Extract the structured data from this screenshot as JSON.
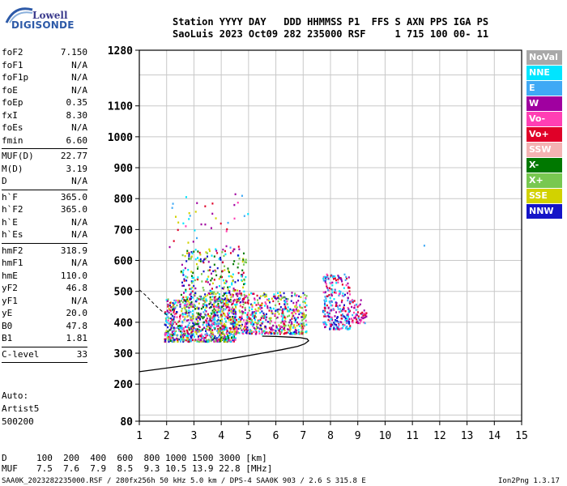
{
  "logo": {
    "line1": "Lowell",
    "line2": "DIGISONDE"
  },
  "header": {
    "row1": "Station YYYY DAY   DDD HHMMSS P1  FFS S AXN PPS IGA PS",
    "row2": "SaoLuis 2023 Oct09 282 235000 RSF     1 715 100 00- 11"
  },
  "params_groups": [
    [
      {
        "name": "foF2",
        "value": "7.150"
      },
      {
        "name": "foF1",
        "value": "N/A"
      },
      {
        "name": "foF1p",
        "value": "N/A"
      },
      {
        "name": "foE",
        "value": "N/A"
      },
      {
        "name": "foEp",
        "value": "0.35"
      },
      {
        "name": "fxI",
        "value": "8.30"
      },
      {
        "name": "foEs",
        "value": "N/A"
      },
      {
        "name": "fmin",
        "value": "6.60"
      }
    ],
    [
      {
        "name": "MUF(D)",
        "value": "22.77"
      },
      {
        "name": "M(D)",
        "value": "3.19"
      },
      {
        "name": "D",
        "value": "N/A"
      }
    ],
    [
      {
        "name": "h`F",
        "value": "365.0"
      },
      {
        "name": "h`F2",
        "value": "365.0"
      },
      {
        "name": "h`E",
        "value": "N/A"
      },
      {
        "name": "h`Es",
        "value": "N/A"
      }
    ],
    [
      {
        "name": "hmF2",
        "value": "318.9"
      },
      {
        "name": "hmF1",
        "value": "N/A"
      },
      {
        "name": "hmE",
        "value": "110.0"
      },
      {
        "name": "yF2",
        "value": "46.8"
      },
      {
        "name": "yF1",
        "value": "N/A"
      },
      {
        "name": "yE",
        "value": "20.0"
      },
      {
        "name": "B0",
        "value": "47.8"
      },
      {
        "name": "B1",
        "value": "1.81"
      }
    ],
    [
      {
        "name": "C-level",
        "value": "33"
      }
    ]
  ],
  "autoscaling": [
    "Auto:",
    "Artist5",
    "500200"
  ],
  "legend": [
    {
      "label": "NoVal",
      "color": "#a8a8a8"
    },
    {
      "label": "NNE",
      "color": "#00e5ff"
    },
    {
      "label": "E",
      "color": "#3fa9f5"
    },
    {
      "label": "W",
      "color": "#a000a0"
    },
    {
      "label": "Vo-",
      "color": "#ff3fb4"
    },
    {
      "label": "Vo+",
      "color": "#e00028"
    },
    {
      "label": "SSW",
      "color": "#f4b3b3"
    },
    {
      "label": "X-",
      "color": "#007800"
    },
    {
      "label": "X+",
      "color": "#78c850"
    },
    {
      "label": "SSE",
      "color": "#d2d200"
    },
    {
      "label": "NNW",
      "color": "#1414c8"
    }
  ],
  "bottom": {
    "d_label": "D",
    "d_values": "100  200  400  600  800 1000 1500 3000 [km]",
    "muf_label": "MUF",
    "muf_values": "7.5  7.6  7.9  8.5  9.3 10.5 13.9 22.8 [MHz]"
  },
  "footer": {
    "left": "SAA0K_2023282235000.RSF / 280fx256h 50 kHz 5.0 km / DPS-4 SAA0K 903 / 2.6 S 315.8 E",
    "right": "Ion2Png 1.3.17"
  },
  "chart_data": {
    "type": "scatter",
    "xlim": [
      1,
      15
    ],
    "ylim": [
      80,
      1280
    ],
    "x_ticks": [
      "1",
      "2",
      "3",
      "4",
      "5",
      "6",
      "7",
      "8",
      "9",
      "10",
      "11",
      "12",
      "13",
      "14",
      "15"
    ],
    "y_ticks": [
      {
        "value": 80,
        "label": "80"
      },
      {
        "value": 200,
        "label": "200"
      },
      {
        "value": 300,
        "label": "300"
      },
      {
        "value": 400,
        "label": "400"
      },
      {
        "value": 500,
        "label": "500"
      },
      {
        "value": 600,
        "label": "600"
      },
      {
        "value": 700,
        "label": "700"
      },
      {
        "value": 800,
        "label": "800"
      },
      {
        "value": 900,
        "label": "900"
      },
      {
        "value": 1000,
        "label": "1000"
      },
      {
        "value": 1100,
        "label": "1100"
      },
      {
        "value": 1280,
        "label": "1280"
      }
    ],
    "grid": true,
    "echo_clusters": [
      {
        "x": [
          1.9,
          4.5
        ],
        "y": [
          340,
          480
        ],
        "n": 900,
        "colors": [
          "#d2d200",
          "#a000a0",
          "#1414c8",
          "#e00028",
          "#ff3fb4",
          "#007800",
          "#78c850",
          "#00e5ff",
          "#3fa9f5"
        ]
      },
      {
        "x": [
          2.5,
          4.9
        ],
        "y": [
          470,
          640
        ],
        "n": 300,
        "colors": [
          "#d2d200",
          "#a000a0",
          "#1414c8",
          "#e00028",
          "#007800",
          "#78c850",
          "#00e5ff"
        ]
      },
      {
        "x": [
          4.4,
          7.1
        ],
        "y": [
          365,
          500
        ],
        "n": 600,
        "colors": [
          "#d2d200",
          "#a000a0",
          "#1414c8",
          "#e00028",
          "#ff3fb4",
          "#78c850",
          "#00e5ff"
        ]
      },
      {
        "x": [
          7.7,
          8.7
        ],
        "y": [
          380,
          560
        ],
        "n": 260,
        "colors": [
          "#3fa9f5",
          "#00e5ff",
          "#1414c8",
          "#ff3fb4",
          "#a000a0",
          "#e00028"
        ]
      },
      {
        "x": [
          8.7,
          9.3
        ],
        "y": [
          400,
          480
        ],
        "n": 60,
        "colors": [
          "#ff3fb4",
          "#e00028",
          "#3fa9f5",
          "#a000a0"
        ]
      },
      {
        "x": [
          1.9,
          5.0
        ],
        "y": [
          640,
          820
        ],
        "n": 40,
        "colors": [
          "#d2d200",
          "#e00028",
          "#ff3fb4",
          "#3fa9f5",
          "#a000a0",
          "#00e5ff"
        ]
      },
      {
        "x": [
          11.35,
          11.45
        ],
        "y": [
          650,
          660
        ],
        "n": 1,
        "colors": [
          "#3fa9f5"
        ]
      }
    ],
    "profile_curve": {
      "x": [
        1.0,
        2.0,
        3.0,
        4.0,
        4.8,
        5.5,
        6.2,
        6.8,
        7.05,
        7.2,
        7.15,
        6.9,
        6.5,
        6.0,
        5.5
      ],
      "y": [
        240,
        252,
        264,
        277,
        289,
        300,
        311,
        322,
        330,
        340,
        346,
        350,
        352,
        354,
        355
      ]
    },
    "dashed_curve": {
      "x": [
        1.0,
        1.2,
        1.4,
        1.6,
        1.8,
        2.0
      ],
      "y": [
        505,
        490,
        472,
        454,
        438,
        424
      ]
    }
  }
}
